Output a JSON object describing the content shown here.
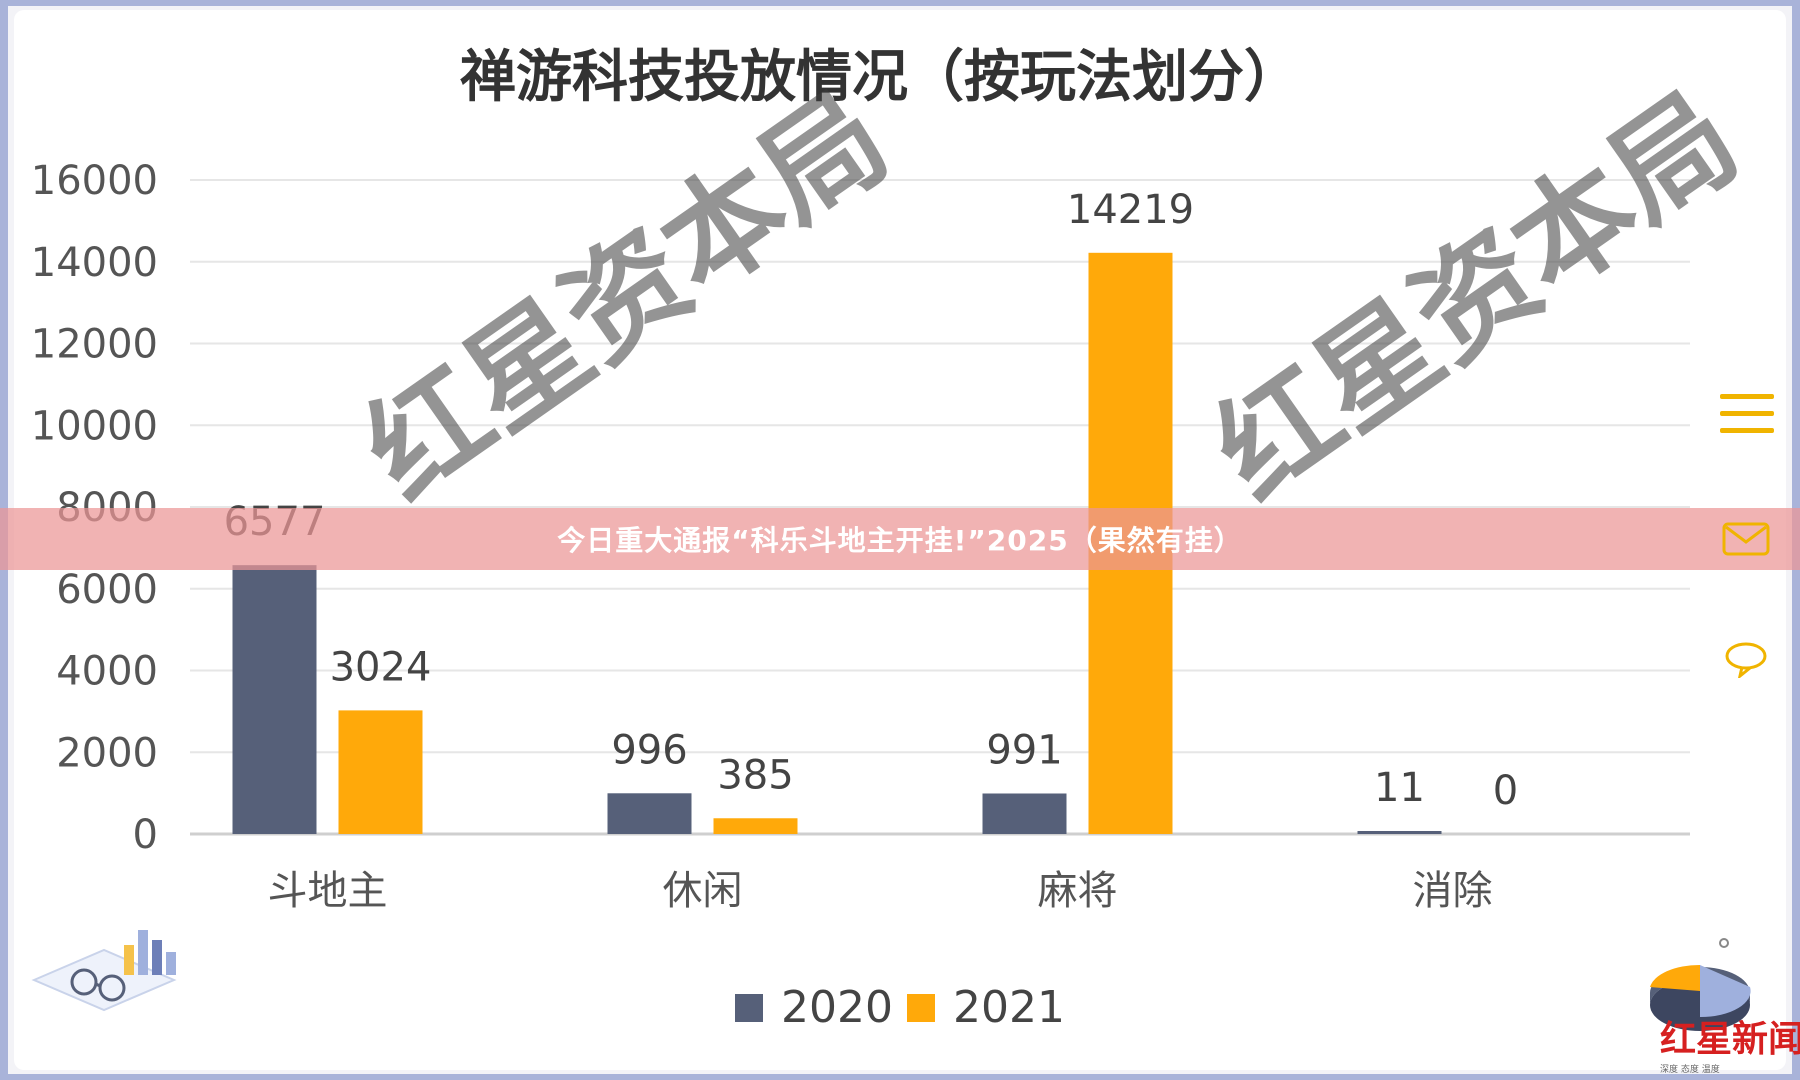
{
  "banner": {
    "text": "今日重大通报“科乐斗地主开挂!”2025（果然有挂）"
  },
  "watermarks": [
    "红星资本局",
    "红星资本局"
  ],
  "logo": {
    "name": "红星新闻",
    "tagline": "深度 态度 温度"
  },
  "icons": {
    "menu": "menu-icon",
    "mail": "mail-icon",
    "chat": "chat-bubble-icon"
  },
  "colors": {
    "series2020": "#566079",
    "series2021": "#ffa90a",
    "grid": "#e6e6e6",
    "banner": "#ec9696",
    "accent": "#f0b400"
  },
  "chart_data": {
    "type": "bar",
    "title": "禅游科技投放情况（按玩法划分）",
    "xlabel": "",
    "ylabel": "",
    "categories": [
      "斗地主",
      "休闲",
      "麻将",
      "消除"
    ],
    "series": [
      {
        "name": "2020",
        "values": [
          6577,
          996,
          991,
          11
        ]
      },
      {
        "name": "2021",
        "values": [
          3024,
          385,
          14219,
          0
        ]
      }
    ],
    "ylim": [
      0,
      16000
    ],
    "yticks": [
      0,
      2000,
      4000,
      6000,
      8000,
      10000,
      12000,
      14000,
      16000
    ],
    "grid": true,
    "legend_position": "bottom-center",
    "data_labels": true
  }
}
